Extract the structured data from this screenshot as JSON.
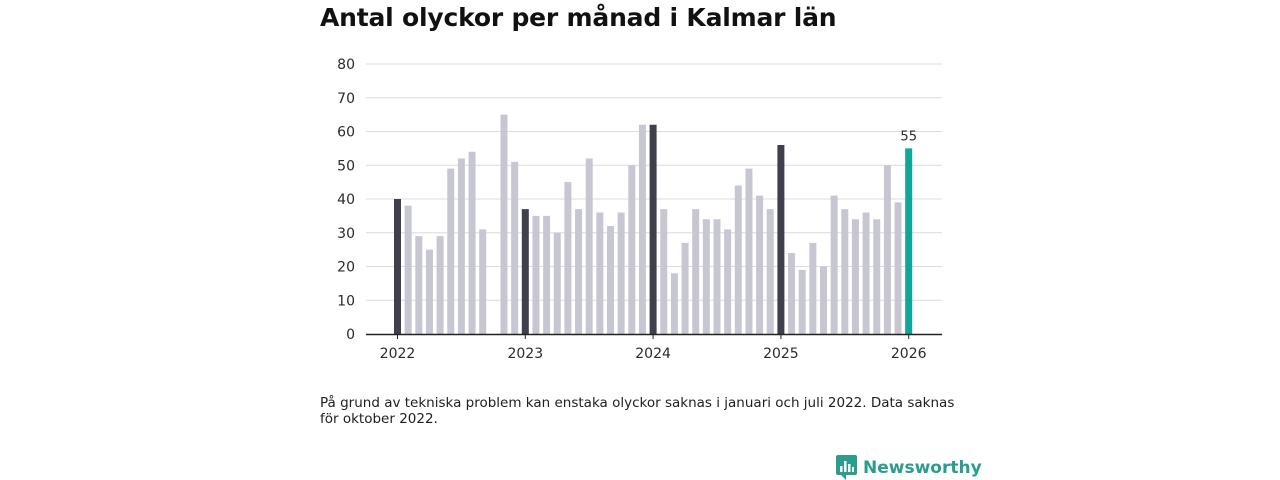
{
  "page": {
    "title": "Antal olyckor per månad i Kalmar län",
    "note": "På grund av tekniska problem kan enstaka olyckor saknas i januari och juli 2022. Data saknas för oktober 2022.",
    "brand": "Newsworthy"
  },
  "colors": {
    "regular": "#c7c7d3",
    "january": "#3f3f4e",
    "latest": "#12a59a",
    "grid": "#dcdcdc",
    "axis": "#222222",
    "brand": "#2a9d8f"
  },
  "chart_data": {
    "type": "bar",
    "title": "Antal olyckor per månad i Kalmar län",
    "xlabel": "",
    "ylabel": "",
    "ylim": [
      0,
      80
    ],
    "yticks": [
      "0",
      "10",
      "20",
      "30",
      "40",
      "50",
      "60",
      "70",
      "80"
    ],
    "xticks": [
      {
        "label": "2022",
        "index": 0
      },
      {
        "label": "2023",
        "index": 12
      },
      {
        "label": "2024",
        "index": 24
      },
      {
        "label": "2025",
        "index": 36
      },
      {
        "label": "2026",
        "index": 48
      }
    ],
    "categories": [
      "2022-01",
      "2022-02",
      "2022-03",
      "2022-04",
      "2022-05",
      "2022-06",
      "2022-07",
      "2022-08",
      "2022-09",
      "2022-10",
      "2022-11",
      "2022-12",
      "2023-01",
      "2023-02",
      "2023-03",
      "2023-04",
      "2023-05",
      "2023-06",
      "2023-07",
      "2023-08",
      "2023-09",
      "2023-10",
      "2023-11",
      "2023-12",
      "2024-01",
      "2024-02",
      "2024-03",
      "2024-04",
      "2024-05",
      "2024-06",
      "2024-07",
      "2024-08",
      "2024-09",
      "2024-10",
      "2024-11",
      "2024-12",
      "2025-01",
      "2025-02",
      "2025-03",
      "2025-04",
      "2025-05",
      "2025-06",
      "2025-07",
      "2025-08",
      "2025-09",
      "2025-10",
      "2025-11",
      "2025-12",
      "2026-01"
    ],
    "values": [
      40,
      38,
      29,
      25,
      29,
      49,
      52,
      54,
      31,
      null,
      65,
      51,
      37,
      35,
      35,
      30,
      45,
      37,
      52,
      36,
      32,
      36,
      50,
      62,
      62,
      37,
      18,
      27,
      37,
      34,
      34,
      31,
      44,
      49,
      41,
      37,
      56,
      24,
      19,
      27,
      20,
      41,
      37,
      34,
      36,
      34,
      50,
      39,
      55
    ],
    "annotations": [
      {
        "index": 48,
        "text": "55"
      }
    ]
  }
}
